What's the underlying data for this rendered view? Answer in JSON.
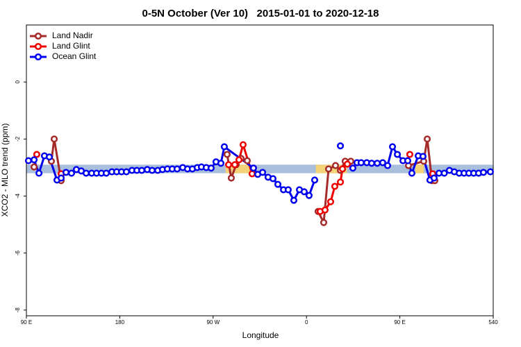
{
  "chart_data": {
    "type": "line",
    "title": "0-5N October (Ver 10)   2015-01-01 to 2020-12-18",
    "xlabel": "Longitude",
    "ylabel": "XCO2 - MLO trend (ppm)",
    "xlim": [
      90,
      540
    ],
    "ylim": [
      -8.2,
      2
    ],
    "xticks": [
      {
        "value": 90,
        "label": "90 E"
      },
      180,
      {
        "value": 270,
        "label": "90 W"
      },
      {
        "value": 360,
        "label": "0"
      },
      {
        "value": 450,
        "label": "90 E"
      },
      540
    ],
    "yticks": [
      0,
      -2,
      -4,
      -6,
      -8
    ],
    "legend": "upper left",
    "band_ylim": [
      -3.2,
      -2.9
    ],
    "bands": [
      {
        "x": [
          90,
          540
        ],
        "color": "#a9bfdc"
      },
      {
        "x": [
          282,
          306
        ],
        "color": "#f3d27a"
      },
      {
        "x": [
          369,
          399
        ],
        "color": "#f3d27a"
      },
      {
        "x": [
          465,
          473
        ],
        "color": "#f3d27a"
      }
    ],
    "series": [
      {
        "name": "Land Nadir",
        "color": "#a52a2a",
        "x": [
          97.4,
          105,
          114.1,
          116.8,
          123.5,
          200,
          283.5,
          287.5,
          292.2,
          296.9,
          302.9,
          340,
          371.2,
          376.6,
          381.3,
          388.0,
          392.7,
          397.3,
          402.7,
          430,
          458.3,
          473.0,
          476.4,
          481.0,
          483.7
        ],
        "values": [
          -2.98,
          null,
          -2.78,
          -2.0,
          -3.46,
          null,
          -2.54,
          -3.37,
          -2.9,
          -2.68,
          -2.76,
          null,
          -4.54,
          -4.93,
          -3.05,
          -2.93,
          -3.1,
          -2.78,
          -2.78,
          null,
          -2.93,
          -2.78,
          -2.0,
          -3.46,
          -3.46
        ]
      },
      {
        "name": "Land Glint",
        "color": "#ee0000",
        "x": [
          100.0,
          110,
          123.5,
          200,
          284.9,
          290.9,
          294.9,
          298.9,
          307.6,
          340,
          373.2,
          377.9,
          383.3,
          387.3,
          392.7,
          394.7,
          399.4,
          430,
          459.6,
          470,
          481.7
        ],
        "values": [
          -2.54,
          null,
          -3.22,
          null,
          -2.9,
          -2.9,
          -2.73,
          -2.2,
          -3.22,
          null,
          -4.54,
          -4.49,
          -4.2,
          -3.66,
          -3.51,
          -3.05,
          -2.88,
          null,
          -2.54,
          null,
          -3.22
        ]
      },
      {
        "name": "Ocean Glint",
        "color": "#0000ee",
        "x": [
          92.0,
          97.4,
          102.1,
          107.4,
          112.1,
          119.5,
          123.5,
          128.2,
          133.5,
          138.2,
          142.9,
          147.6,
          152.9,
          157.6,
          162.3,
          167.0,
          172.4,
          177.0,
          181.7,
          186.4,
          191.8,
          196.5,
          201.2,
          206.5,
          211.2,
          216.6,
          221.2,
          225.9,
          230.6,
          235.3,
          240.7,
          245.3,
          250.0,
          254.7,
          258.7,
          263.4,
          268.1,
          272.8,
          277.5,
          280.8,
          308.9,
          313.0,
          317.7,
          323.0,
          327.7,
          332.4,
          337.8,
          342.4,
          347.8,
          353.2,
          357.8,
          362.5,
          367.9,
          380,
          392.7,
          400,
          404.7,
          408.7,
          412.7,
          418.1,
          422.8,
          428.2,
          433.5,
          438.2,
          442.9,
          447.6,
          453.0,
          457.6,
          461.6,
          467.7,
          472.3,
          479.0,
          483.0,
          487.7,
          492.8,
          497.8,
          502.5,
          507.2,
          511.9,
          516.5,
          521.2,
          525.9,
          530.6,
          537.3
        ],
        "values": [
          -2.76,
          -2.73,
          -3.2,
          -2.59,
          -2.63,
          -3.44,
          -3.37,
          -3.17,
          -3.2,
          -3.07,
          -3.12,
          -3.2,
          -3.2,
          -3.2,
          -3.2,
          -3.2,
          -3.15,
          -3.15,
          -3.15,
          -3.15,
          -3.1,
          -3.1,
          -3.1,
          -3.07,
          -3.1,
          -3.1,
          -3.07,
          -3.05,
          -3.05,
          -3.05,
          -3.0,
          -3.05,
          -3.05,
          -3.0,
          -2.98,
          -3.0,
          -3.02,
          -2.8,
          -2.85,
          -2.27,
          -3.02,
          -3.24,
          -3.17,
          -3.34,
          -3.39,
          -3.59,
          -3.78,
          -3.78,
          -4.15,
          -3.78,
          -3.85,
          -3.98,
          -3.44,
          null,
          -2.24,
          null,
          -3.02,
          -2.83,
          -2.83,
          -2.83,
          -2.85,
          -2.85,
          -2.83,
          -2.93,
          -2.27,
          -2.54,
          -2.76,
          -2.76,
          -3.2,
          -2.59,
          -2.61,
          -3.44,
          -3.37,
          -3.2,
          -3.2,
          -3.1,
          -3.15,
          -3.2,
          -3.2,
          -3.2,
          -3.2,
          -3.2,
          -3.17,
          -3.15
        ]
      }
    ]
  }
}
